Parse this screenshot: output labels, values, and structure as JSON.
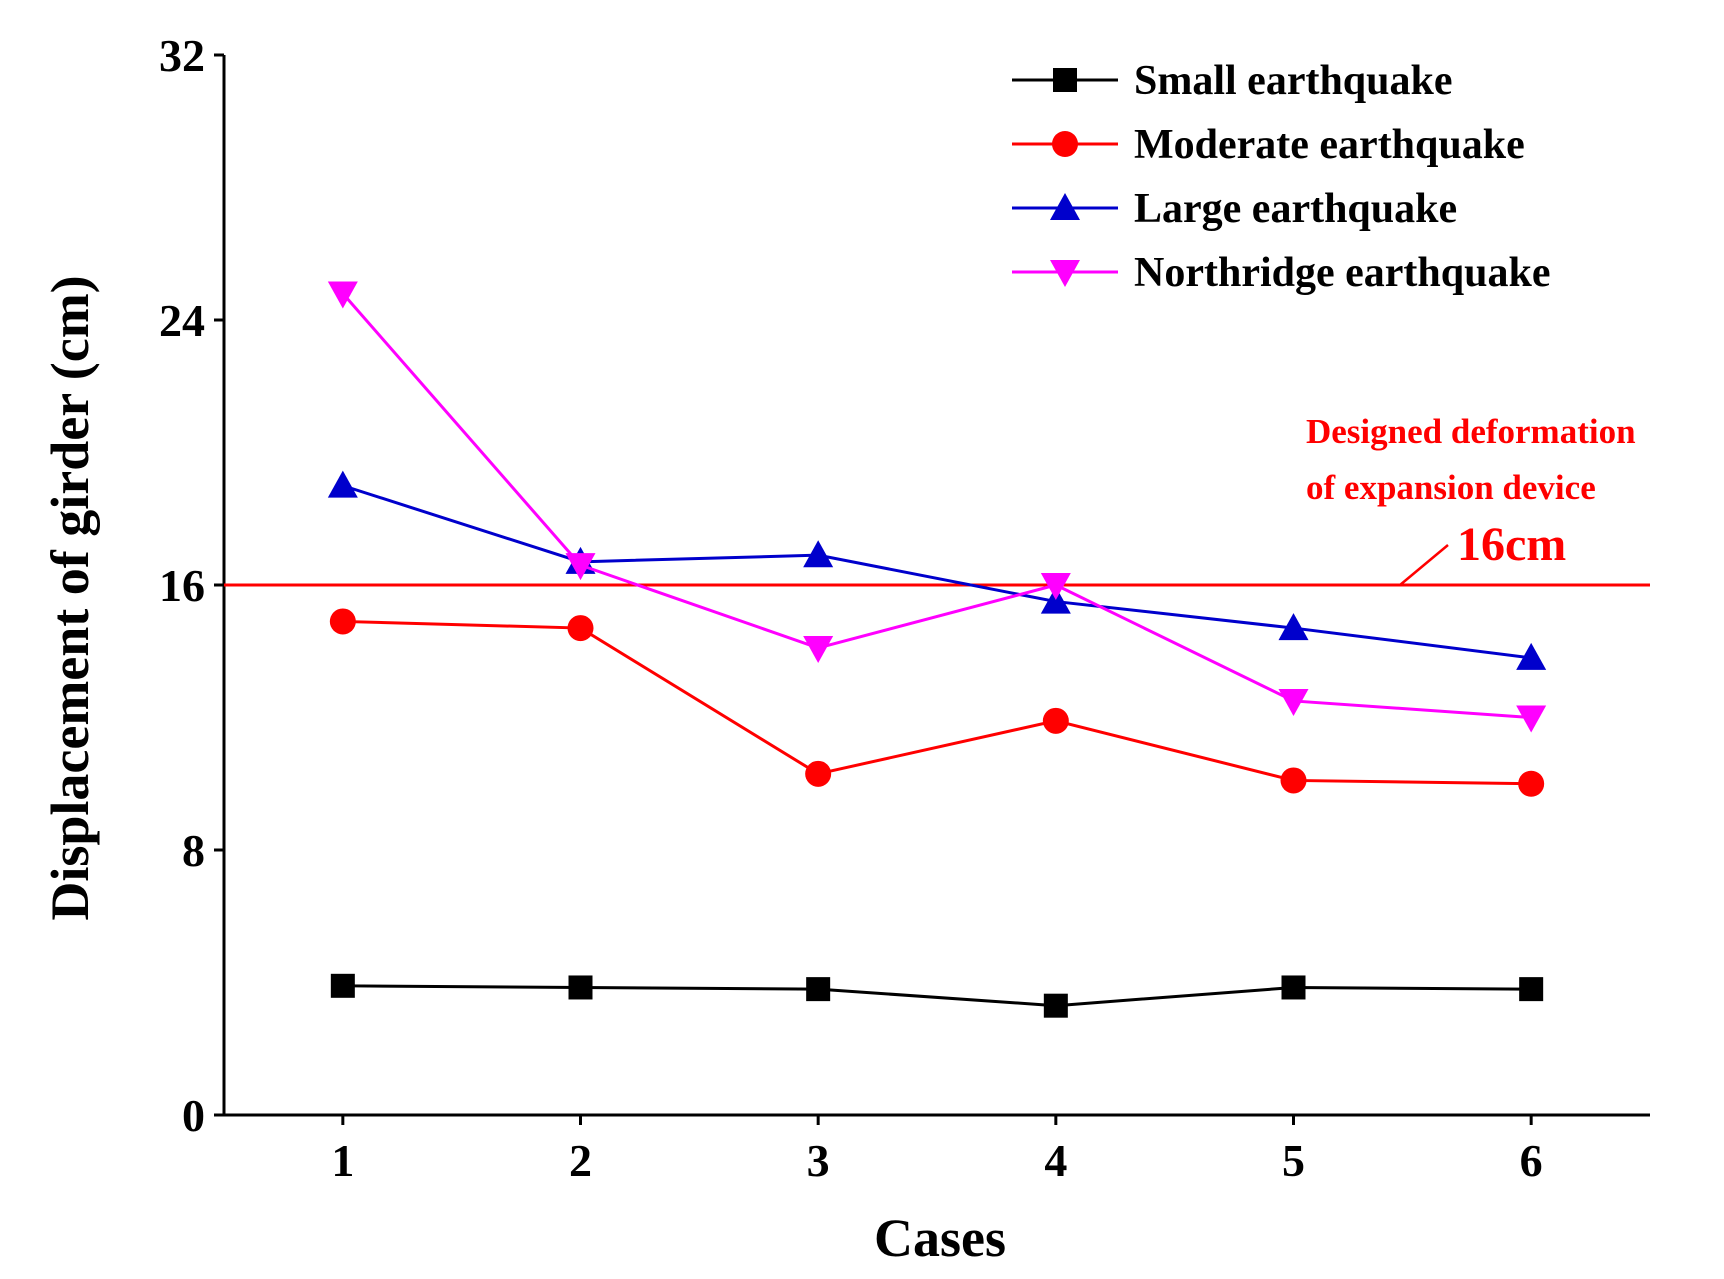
{
  "chart_data": {
    "type": "line",
    "title": "",
    "xlabel": "Cases",
    "ylabel": "Displacement of girder (cm)",
    "categories": [
      "1",
      "2",
      "3",
      "4",
      "5",
      "6"
    ],
    "x": [
      1,
      2,
      3,
      4,
      5,
      6
    ],
    "xlim": [
      0.5,
      6.5
    ],
    "ylim": [
      0,
      32
    ],
    "yticks": [
      0,
      8,
      16,
      24,
      32
    ],
    "ytick_labels": [
      "0",
      "8",
      "16",
      "24",
      "32"
    ],
    "grid": false,
    "legend_position": "top-right",
    "series": [
      {
        "name": "Small earthquake",
        "color": "#000000",
        "marker": "square",
        "values": [
          3.9,
          3.85,
          3.8,
          3.3,
          3.85,
          3.8
        ]
      },
      {
        "name": "Moderate earthquake",
        "color": "#ff0000",
        "marker": "circle",
        "values": [
          14.9,
          14.7,
          10.3,
          11.9,
          10.1,
          10.0
        ]
      },
      {
        "name": "Large earthquake",
        "color": "#0000cc",
        "marker": "triangle-up",
        "values": [
          19.0,
          16.7,
          16.9,
          15.5,
          14.7,
          13.8
        ]
      },
      {
        "name": "Northridge earthquake",
        "color": "#ff00ff",
        "marker": "triangle-down",
        "values": [
          24.8,
          16.6,
          14.1,
          16.0,
          12.5,
          12.0
        ]
      }
    ],
    "reference_line": {
      "value": 16,
      "color": "#ff0000",
      "label_line1": "Designed deformation",
      "label_line2": "of expansion device",
      "value_label": "16cm"
    }
  }
}
